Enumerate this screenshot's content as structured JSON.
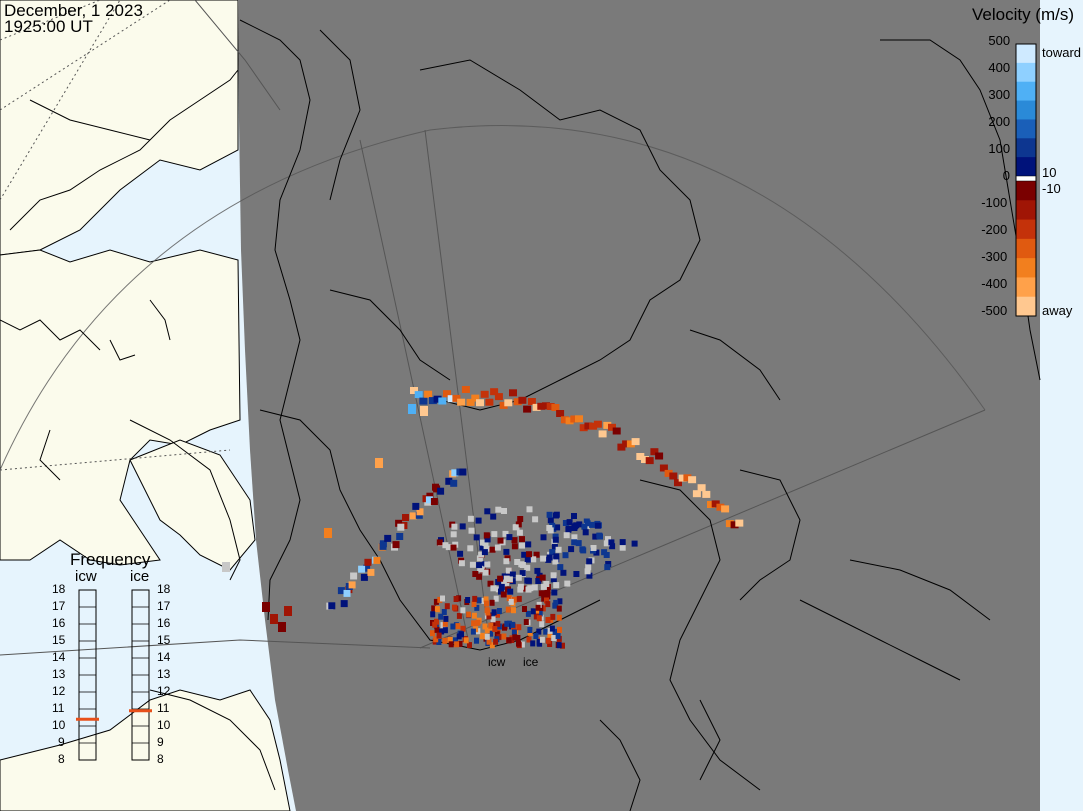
{
  "header": {
    "date": "December, 1 2023",
    "time": "1925:00 UT"
  },
  "colorbar": {
    "title": "Velocity (m/s)",
    "toward_label": "toward",
    "away_label": "away",
    "ticks": [
      "500",
      "400",
      "300",
      "200",
      "100",
      "0",
      "-100",
      "-200",
      "-300",
      "-400",
      "-500"
    ],
    "near_zero_pos": "10",
    "near_zero_neg": "-10",
    "toward_colors": [
      "#cfeaff",
      "#8fd0ff",
      "#4fb0f5",
      "#2a8ad8",
      "#1a5fb8",
      "#0d3690",
      "#00127a"
    ],
    "away_colors": [
      "#7a0000",
      "#a01505",
      "#c4320a",
      "#e05a10",
      "#f27f1e",
      "#ffa14a",
      "#ffc890"
    ],
    "ground_scatter_color": "#c8c8c8"
  },
  "frequency": {
    "title": "Frequency",
    "radars": [
      {
        "name": "icw",
        "value_mhz": 10.4,
        "color": "#e8501a"
      },
      {
        "name": "ice",
        "value_mhz": 10.9,
        "color": "#e8501a"
      }
    ],
    "ticks": [
      "18",
      "17",
      "16",
      "15",
      "14",
      "13",
      "12",
      "11",
      "10",
      "9",
      "8"
    ]
  },
  "map": {
    "night_color": "#7a7a7a",
    "land_day_color": "#fbfbec",
    "ocean_day_color": "#e6f4fd",
    "coastline_color": "#000000"
  },
  "radar_labels": [
    "icw",
    "ice"
  ]
}
